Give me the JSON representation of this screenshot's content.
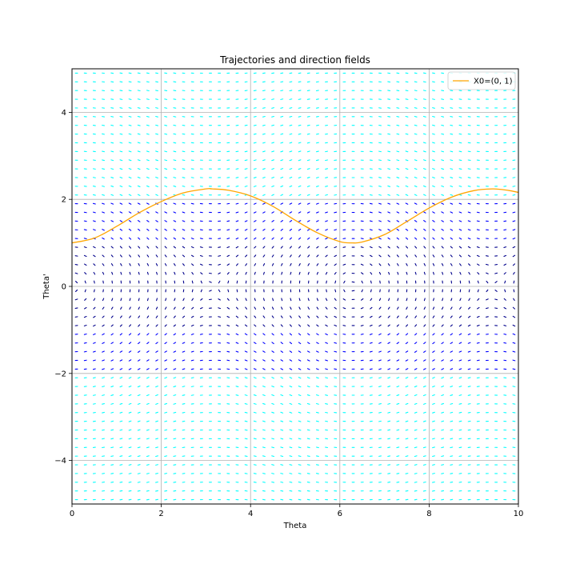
{
  "chart_data": {
    "type": "line",
    "title": "Trajectories and direction fields",
    "xlabel": "Theta",
    "ylabel": "Theta'",
    "xlim": [
      0,
      10
    ],
    "ylim": [
      -5,
      5
    ],
    "xticks": [
      0,
      2,
      4,
      6,
      8,
      10
    ],
    "yticks": [
      -4,
      -2,
      0,
      2,
      4
    ],
    "xtick_labels": [
      "0",
      "2",
      "4",
      "6",
      "8",
      "10"
    ],
    "ytick_labels": [
      "−4",
      "−2",
      "0",
      "2",
      "4"
    ],
    "grid": true,
    "legend_position": "top-right",
    "series": [
      {
        "name": "X0=(0, 1)",
        "color": "#ffa500",
        "x": [
          0,
          0.5,
          1,
          1.5,
          2,
          2.5,
          3,
          3.14,
          3.5,
          4,
          4.5,
          5,
          5.5,
          6,
          6.28,
          6.5,
          7,
          7.5,
          8,
          8.5,
          9,
          9.42,
          9.75,
          10
        ],
        "y": [
          1.0,
          1.11,
          1.38,
          1.69,
          1.95,
          2.15,
          2.24,
          2.24,
          2.21,
          2.08,
          1.84,
          1.52,
          1.23,
          1.03,
          1.0,
          1.02,
          1.19,
          1.49,
          1.8,
          2.05,
          2.2,
          2.24,
          2.21,
          2.16
        ]
      }
    ],
    "direction_field": {
      "color_scale": [
        "#00008b",
        "#0000ff",
        "#00ffff"
      ],
      "x_range": [
        0,
        10
      ],
      "y_range": [
        -5,
        5
      ]
    }
  }
}
